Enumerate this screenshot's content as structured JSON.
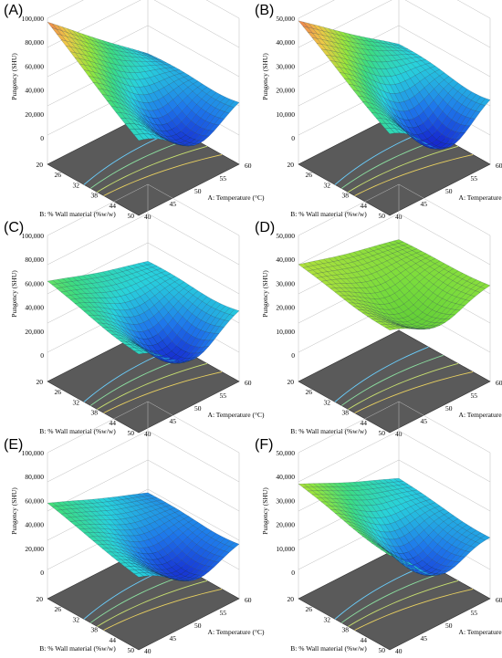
{
  "figure": {
    "panels": [
      {
        "label": "(A)",
        "zlabel": "Pungency (SHU)",
        "xlabel": "A: Temperature (°C)",
        "ylabel": "B: % Wall material (%w/w)",
        "zticks": [
          "100,000",
          "80,000",
          "60,000",
          "40,000",
          "20,000",
          "0"
        ],
        "xticks": [
          "40",
          "45",
          "50",
          "55",
          "60"
        ],
        "yticks": [
          "20",
          "26",
          "32",
          "38",
          "44",
          "50"
        ]
      },
      {
        "label": "(B)",
        "zlabel": "Pungency (SHU)",
        "xlabel": "A: Temperature (°C)",
        "ylabel": "B: % Wall material (%w/w)",
        "zticks": [
          "50,000",
          "40,000",
          "30,000",
          "20,000",
          "10,000",
          "0"
        ],
        "xticks": [
          "40",
          "45",
          "50",
          "55",
          "60"
        ],
        "yticks": [
          "20",
          "26",
          "32",
          "38",
          "44",
          "50"
        ]
      },
      {
        "label": "(C)",
        "zlabel": "Pungency (SHU)",
        "xlabel": "A: Temperature (°C)",
        "ylabel": "B: % Wall material (%w/w)",
        "zticks": [
          "100,000",
          "80,000",
          "60,000",
          "40,000",
          "20,000",
          "0"
        ],
        "xticks": [
          "40",
          "45",
          "50",
          "55",
          "60"
        ],
        "yticks": [
          "20",
          "26",
          "32",
          "38",
          "44",
          "50"
        ]
      },
      {
        "label": "(D)",
        "zlabel": "Pungency (SHU)",
        "xlabel": "A: Temperature (°C)",
        "ylabel": "B: % Wall material (%w/w)",
        "zticks": [
          "50,000",
          "40,000",
          "30,000",
          "20,000",
          "10,000",
          "0"
        ],
        "xticks": [
          "40",
          "45",
          "50",
          "55",
          "60"
        ],
        "yticks": [
          "20",
          "26",
          "32",
          "38",
          "44",
          "50"
        ]
      },
      {
        "label": "(E)",
        "zlabel": "Pungency (SHU)",
        "xlabel": "A: Temperature (°C)",
        "ylabel": "B: % Wall material (%w/w)",
        "zticks": [
          "100,000",
          "80,000",
          "60,000",
          "40,000",
          "20,000",
          "0"
        ],
        "xticks": [
          "40",
          "45",
          "50",
          "55",
          "60"
        ],
        "yticks": [
          "20",
          "26",
          "32",
          "38",
          "44",
          "50"
        ]
      },
      {
        "label": "(F)",
        "zlabel": "Pungency (SHU)",
        "xlabel": "A: Temperature (°C)",
        "ylabel": "B: % Wall material (%w/w)",
        "zticks": [
          "50,000",
          "40,000",
          "30,000",
          "20,000",
          "10,000",
          "0"
        ],
        "xticks": [
          "40",
          "45",
          "50",
          "55",
          "60"
        ],
        "yticks": [
          "20",
          "26",
          "32",
          "38",
          "44",
          "50"
        ]
      }
    ]
  },
  "chart_data": [
    {
      "type": "surface3d",
      "panel": "(A)",
      "x_name": "A: Temperature (°C)",
      "y_name": "B: % Wall material (%w/w)",
      "z_name": "Pungency (SHU)",
      "xlim": [
        40,
        60
      ],
      "ylim": [
        20,
        50
      ],
      "zlim": [
        0,
        100000
      ],
      "corner_values": {
        "x40_y20": 28000,
        "x60_y20": 97000,
        "x40_y50": 36000,
        "x60_y50": 42000
      },
      "min_value": 8000,
      "min_at": {
        "x": 48,
        "y": 45
      },
      "colormap": "blue-cyan-green-yellow-red",
      "contour_floor": true
    },
    {
      "type": "surface3d",
      "panel": "(B)",
      "x_name": "A: Temperature (°C)",
      "y_name": "B: % Wall material (%w/w)",
      "z_name": "Pungency (SHU)",
      "xlim": [
        40,
        60
      ],
      "ylim": [
        20,
        50
      ],
      "zlim": [
        0,
        50000
      ],
      "corner_values": {
        "x40_y20": 18000,
        "x60_y20": 49000,
        "x40_y50": 20000,
        "x60_y50": 24000
      },
      "min_value": 2000,
      "min_at": {
        "x": 48,
        "y": 45
      },
      "colormap": "blue-cyan-green-yellow-red",
      "contour_floor": true
    },
    {
      "type": "surface3d",
      "panel": "(C)",
      "x_name": "A: Temperature (°C)",
      "y_name": "B: % Wall material (%w/w)",
      "z_name": "Pungency (SHU)",
      "xlim": [
        40,
        60
      ],
      "ylim": [
        20,
        50
      ],
      "zlim": [
        0,
        100000
      ],
      "corner_values": {
        "x40_y20": 36000,
        "x60_y20": 62000,
        "x40_y50": 42000,
        "x60_y50": 46000
      },
      "min_value": 6000,
      "min_at": {
        "x": 49,
        "y": 43
      },
      "colormap": "blue-cyan-green-yellow-red",
      "contour_floor": true
    },
    {
      "type": "surface3d",
      "panel": "(D)",
      "x_name": "A: Temperature (°C)",
      "y_name": "B: % Wall material (%w/w)",
      "z_name": "Pungency (SHU)",
      "xlim": [
        40,
        60
      ],
      "ylim": [
        20,
        50
      ],
      "zlim": [
        0,
        50000
      ],
      "corner_values": {
        "x40_y20": 27000,
        "x60_y20": 38000,
        "x40_y50": 30000,
        "x60_y50": 33000
      },
      "min_value": 19000,
      "min_at": {
        "x": 50,
        "y": 42
      },
      "colormap": "green-yellow",
      "contour_floor": true
    },
    {
      "type": "surface3d",
      "panel": "(E)",
      "x_name": "A: Temperature (°C)",
      "y_name": "B: % Wall material (%w/w)",
      "z_name": "Pungency (SHU)",
      "xlim": [
        40,
        60
      ],
      "ylim": [
        20,
        50
      ],
      "zlim": [
        0,
        100000
      ],
      "corner_values": {
        "x40_y20": 24000,
        "x60_y20": 58000,
        "x40_y50": 28000,
        "x60_y50": 40000
      },
      "min_value": 7000,
      "min_at": {
        "x": 48,
        "y": 44
      },
      "colormap": "blue-cyan-green-yellow-red",
      "contour_floor": true
    },
    {
      "type": "surface3d",
      "panel": "(F)",
      "x_name": "A: Temperature (°C)",
      "y_name": "B: % Wall material (%w/w)",
      "z_name": "Pungency (SHU)",
      "xlim": [
        40,
        60
      ],
      "ylim": [
        20,
        50
      ],
      "zlim": [
        0,
        50000
      ],
      "corner_values": {
        "x40_y20": 18000,
        "x60_y20": 37000,
        "x40_y50": 16000,
        "x60_y50": 30000
      },
      "min_value": 6000,
      "min_at": {
        "x": 49,
        "y": 44
      },
      "colormap": "blue-cyan-green-yellow-red",
      "contour_floor": true
    }
  ]
}
